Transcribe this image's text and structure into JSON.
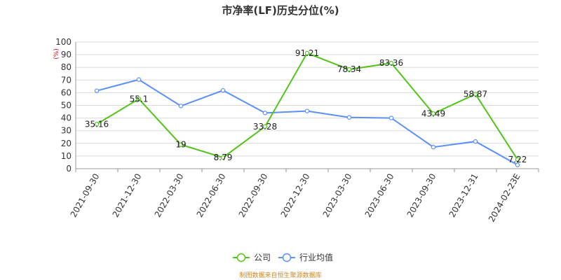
{
  "chart_data": {
    "type": "line",
    "title": "市净率(LF)历史分位(%)",
    "unit_label": "(%)",
    "categories": [
      "2021-09-30",
      "2021-12-30",
      "2022-03-30",
      "2022-06-30",
      "2022-09-30",
      "2022-12-30",
      "2023-03-30",
      "2023-06-30",
      "2023-09-30",
      "2023-12-31",
      "2024-02-23E"
    ],
    "ylim": [
      0,
      100
    ],
    "yticks": [
      0,
      10,
      20,
      30,
      40,
      50,
      60,
      70,
      80,
      90,
      100
    ],
    "grid": true,
    "legend_position": "bottom",
    "series": [
      {
        "name": "公司",
        "color": "#52c41a",
        "values": [
          35.16,
          55.1,
          19,
          8.79,
          33.28,
          91.21,
          78.34,
          83.36,
          43.49,
          58.87,
          7.22
        ],
        "labels": [
          "35.16",
          "55.1",
          "19",
          "8.79",
          "33.28",
          "91.21",
          "78.34",
          "83.36",
          "43.49",
          "58.87",
          "7.22"
        ]
      },
      {
        "name": "行业均值",
        "color": "#5b8ff9",
        "values": [
          61.5,
          70.3,
          49.5,
          61.8,
          44.0,
          45.5,
          40.5,
          40.0,
          17.0,
          21.5,
          3.0
        ]
      }
    ],
    "source": "制图数据来自恒生聚源数据库"
  }
}
